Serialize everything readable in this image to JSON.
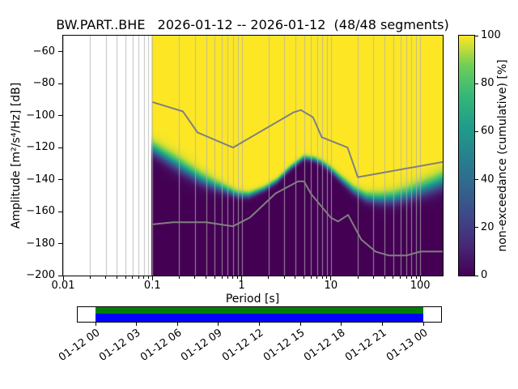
{
  "title": "BW.PART..BHE   2026-01-12 -- 2026-01-12  (48/48 segments)",
  "axes": {
    "xlabel": "Period [s]",
    "ylabel": "Amplitude [m²/s⁴/Hz] [dB]",
    "xticks": [
      {
        "label": "0.01",
        "value": 0.01
      },
      {
        "label": "0.1",
        "value": 0.1
      },
      {
        "label": "1",
        "value": 1
      },
      {
        "label": "10",
        "value": 10
      },
      {
        "label": "100",
        "value": 100
      }
    ],
    "yticks": [
      {
        "label": "−60",
        "value": -60
      },
      {
        "label": "−80",
        "value": -80
      },
      {
        "label": "−100",
        "value": -100
      },
      {
        "label": "−120",
        "value": -120
      },
      {
        "label": "−140",
        "value": -140
      },
      {
        "label": "−160",
        "value": -160
      },
      {
        "label": "−180",
        "value": -180
      },
      {
        "label": "−200",
        "value": -200
      }
    ]
  },
  "colorbar": {
    "label": "non-exceedance (cumulative) [%]",
    "ticks": [
      {
        "label": "0",
        "value": 0
      },
      {
        "label": "20",
        "value": 20
      },
      {
        "label": "40",
        "value": 40
      },
      {
        "label": "60",
        "value": 60
      },
      {
        "label": "80",
        "value": 80
      },
      {
        "label": "100",
        "value": 100
      }
    ]
  },
  "timeline": {
    "tick_labels": [
      "01-12 00",
      "01-12 03",
      "01-12 06",
      "01-12 09",
      "01-12 12",
      "01-12 15",
      "01-12 18",
      "01-12 21",
      "01-13 00"
    ],
    "used_color": "#008000",
    "data_color": "#0000ff"
  },
  "chart_data": {
    "type": "heatmap",
    "subtype": "ppsd-cumulative",
    "title": "BW.PART..BHE   2026-01-12 -- 2026-01-12  (48/48 segments)",
    "xlabel": "Period [s]",
    "ylabel": "Amplitude [m²/s⁴/Hz] [dB]",
    "xscale": "log",
    "xlim": [
      0.01,
      179
    ],
    "ylim": [
      -200,
      -50
    ],
    "grid": true,
    "grid_color": "#b0b0b0",
    "colormap": "viridis",
    "colorbar_label": "non-exceedance (cumulative) [%]",
    "colorbar_range": [
      0,
      100
    ],
    "segments_used": 48,
    "segments_total": 48,
    "data_period_range": [
      0.098,
      179
    ],
    "cumulative_median_curve": {
      "periods": [
        0.1,
        0.13,
        0.18,
        0.25,
        0.35,
        0.5,
        0.7,
        0.9,
        1.2,
        1.8,
        2.5,
        3.5,
        5,
        6.5,
        8,
        10,
        13,
        18,
        25,
        35,
        50,
        70,
        100,
        140,
        179
      ],
      "db": [
        -121,
        -125,
        -130,
        -135,
        -140,
        -144,
        -147,
        -149.5,
        -150,
        -146,
        -141,
        -133,
        -126.5,
        -127.5,
        -130,
        -134,
        -140,
        -147,
        -151.5,
        -152.5,
        -152,
        -150,
        -147,
        -144,
        -141.5
      ]
    },
    "transition_halfwidth_db": {
      "periods": [
        0.1,
        0.2,
        0.4,
        0.8,
        1.5,
        3,
        6,
        10,
        20,
        40,
        80,
        179
      ],
      "halfwidth": [
        2.2,
        2.4,
        2,
        1.2,
        0.9,
        0.8,
        0.8,
        1,
        1.4,
        2,
        2.4,
        2.8
      ]
    },
    "noise_models": {
      "NHNM": {
        "periods": [
          0.1,
          0.22,
          0.32,
          0.8,
          3.8,
          4.6,
          6.3,
          7.9,
          15.4,
          20,
          179
        ],
        "db": [
          -91.5,
          -97.4,
          -110.5,
          -120,
          -98,
          -96.5,
          -101,
          -113.5,
          -120,
          -138.5,
          -129
        ]
      },
      "NLNM": {
        "periods": [
          0.1,
          0.17,
          0.4,
          0.8,
          1.24,
          2.4,
          4.3,
          5,
          6,
          10,
          12,
          15.6,
          21.9,
          31.6,
          45,
          70,
          101,
          154,
          179
        ],
        "db": [
          -168,
          -166.7,
          -166.7,
          -169.2,
          -163.7,
          -148.6,
          -141.1,
          -141.1,
          -149,
          -163.8,
          -166.2,
          -162.1,
          -177.5,
          -185,
          -187.5,
          -187.5,
          -185,
          -185,
          -185
        ]
      }
    },
    "noise_model_color": "#808080",
    "viridis_stops": {
      "t": [
        0,
        0.125,
        0.25,
        0.375,
        0.5,
        0.625,
        0.75,
        0.875,
        1
      ],
      "hex": [
        "#440154",
        "#482878",
        "#3e4989",
        "#31688e",
        "#26828e",
        "#1f9e89",
        "#35b779",
        "#6ece58",
        "#fde725"
      ]
    }
  }
}
